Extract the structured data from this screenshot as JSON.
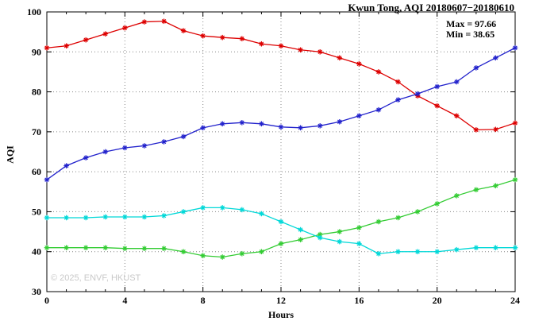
{
  "chart": {
    "title": "Kwun Tong, AQI 20180607−20180610",
    "annotations": {
      "max": "Max = 97.66",
      "min": "Min = 38.65"
    },
    "watermark": "© 2025, ENVF, HKUST"
  },
  "chart_data": {
    "type": "line",
    "title": "Kwun Tong, AQI 20180607−20180610",
    "xlabel": "Hours",
    "ylabel": "AQI",
    "xlim": [
      0,
      24
    ],
    "ylim": [
      30,
      100
    ],
    "xticks": [
      0,
      4,
      8,
      12,
      16,
      20,
      24
    ],
    "yticks": [
      30,
      40,
      50,
      60,
      70,
      80,
      90,
      100
    ],
    "grid": true,
    "legend": "none",
    "marker": "asterisk",
    "annotations": [
      "Max = 97.66",
      "Min = 38.65"
    ],
    "x": [
      0,
      1,
      2,
      3,
      4,
      5,
      6,
      7,
      8,
      9,
      10,
      11,
      12,
      13,
      14,
      15,
      16,
      17,
      18,
      19,
      20,
      21,
      22,
      23,
      24
    ],
    "series": [
      {
        "name": "series-red",
        "color": "#dd0000",
        "values": [
          91,
          91.5,
          93,
          94.5,
          96,
          97.5,
          97.66,
          95.3,
          94,
          93.6,
          93.3,
          92,
          91.5,
          90.5,
          90,
          88.5,
          87,
          85,
          82.5,
          79,
          76.5,
          74,
          70.5,
          70.6,
          72.2
        ]
      },
      {
        "name": "series-blue",
        "color": "#2222cc",
        "values": [
          58,
          61.5,
          63.5,
          65,
          66,
          66.5,
          67.5,
          68.8,
          71,
          72,
          72.3,
          72,
          71.2,
          71,
          71.5,
          72.5,
          74,
          75.5,
          78,
          79.5,
          81.3,
          82.5,
          86,
          88.5,
          91
        ]
      },
      {
        "name": "series-green",
        "color": "#33cc33",
        "values": [
          41,
          41,
          41,
          41,
          40.8,
          40.8,
          40.8,
          40,
          39,
          38.65,
          39.5,
          40,
          42,
          43,
          44.3,
          45,
          46,
          47.5,
          48.5,
          50,
          52,
          54,
          55.5,
          56.5,
          58
        ]
      },
      {
        "name": "series-cyan",
        "color": "#00d8d8",
        "values": [
          48.5,
          48.5,
          48.5,
          48.7,
          48.7,
          48.7,
          49,
          50,
          51,
          51,
          50.5,
          49.5,
          47.5,
          45.5,
          43.5,
          42.5,
          42,
          39.5,
          40,
          40,
          40,
          40.5,
          41,
          41,
          41
        ]
      }
    ]
  }
}
